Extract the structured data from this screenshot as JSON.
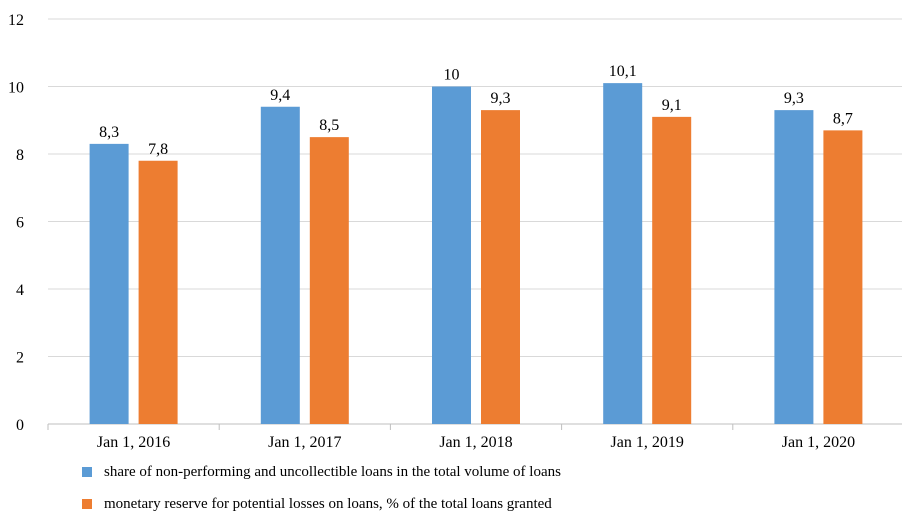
{
  "chart_data": {
    "type": "bar",
    "categories": [
      "Jan 1, 2016",
      "Jan 1, 2017",
      "Jan 1, 2018",
      "Jan 1, 2019",
      "Jan 1, 2020"
    ],
    "series": [
      {
        "name": "share of non-performing and uncollectible loans in the total volume of loans",
        "values": [
          8.3,
          9.4,
          10,
          10.1,
          9.3
        ],
        "labels": [
          "8,3",
          "9,4",
          "10",
          "10,1",
          "9,3"
        ],
        "color": "#5b9bd5"
      },
      {
        "name": "monetary reserve for potential losses on loans, % of the total loans granted",
        "values": [
          7.8,
          8.5,
          9.3,
          9.1,
          8.7
        ],
        "labels": [
          "7,8",
          "8,5",
          "9,3",
          "9,1",
          "8,7"
        ],
        "color": "#ed7d31"
      }
    ],
    "yticks": [
      "0",
      "2",
      "4",
      "6",
      "8",
      "10",
      "12"
    ],
    "ylim": [
      0,
      12
    ],
    "grid": true,
    "legend_position": "bottom"
  }
}
